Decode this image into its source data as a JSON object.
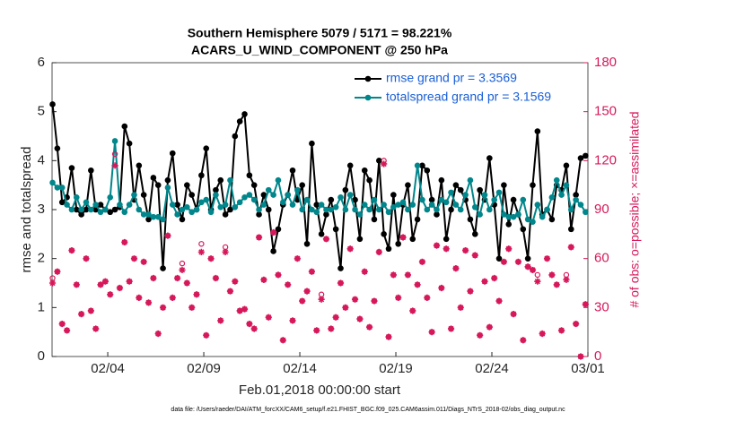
{
  "chart_data": {
    "type": "line",
    "title": "Southern Hemisphere 5079 / 5171 = 98.221%",
    "subtitle": "ACARS_U_WIND_COMPONENT @ 250 hPa",
    "x_label": "Feb.01,2018 00:00:00 start",
    "y_label": "rmse and totalspread",
    "y2_label": "# of obs: o=possible; ×=assimilated",
    "footnote": "data file: /Users/raeder/DAI/ATM_forcXX/CAM6_setup/f.e21.FHIST_BGC.f09_025.CAM6assim.011/Diags_NTrS_2018-02/obs_diag_output.nc",
    "xlim": [
      0.1,
      28
    ],
    "xticks": [
      {
        "value": 3,
        "label": "02/04"
      },
      {
        "value": 8,
        "label": "02/09"
      },
      {
        "value": 13,
        "label": "02/14"
      },
      {
        "value": 18,
        "label": "02/19"
      },
      {
        "value": 23,
        "label": "02/24"
      },
      {
        "value": 28,
        "label": "03/01"
      }
    ],
    "ylim": [
      0,
      6
    ],
    "yticks": [
      0,
      1,
      2,
      3,
      4,
      5,
      6
    ],
    "y2lim": [
      0,
      180
    ],
    "y2ticks": [
      0,
      30,
      60,
      90,
      120,
      150,
      180
    ],
    "grid": false,
    "legend": "upper right",
    "x": [
      0.125,
      0.375,
      0.625,
      0.875,
      1.125,
      1.375,
      1.625,
      1.875,
      2.125,
      2.375,
      2.625,
      2.875,
      3.125,
      3.375,
      3.625,
      3.875,
      4.125,
      4.375,
      4.625,
      4.875,
      5.125,
      5.375,
      5.625,
      5.875,
      6.125,
      6.375,
      6.625,
      6.875,
      7.125,
      7.375,
      7.625,
      7.875,
      8.125,
      8.375,
      8.625,
      8.875,
      9.125,
      9.375,
      9.625,
      9.875,
      10.125,
      10.375,
      10.625,
      10.875,
      11.125,
      11.375,
      11.625,
      11.875,
      12.125,
      12.375,
      12.625,
      12.875,
      13.125,
      13.375,
      13.625,
      13.875,
      14.125,
      14.375,
      14.625,
      14.875,
      15.125,
      15.375,
      15.625,
      15.875,
      16.125,
      16.375,
      16.625,
      16.875,
      17.125,
      17.375,
      17.625,
      17.875,
      18.125,
      18.375,
      18.625,
      18.875,
      19.125,
      19.375,
      19.625,
      19.875,
      20.125,
      20.375,
      20.625,
      20.875,
      21.125,
      21.375,
      21.625,
      21.875,
      22.125,
      22.375,
      22.625,
      22.875,
      23.125,
      23.375,
      23.625,
      23.875,
      24.125,
      24.375,
      24.625,
      24.875,
      25.125,
      25.375,
      25.625,
      25.875,
      26.125,
      26.375,
      26.625,
      26.875,
      27.125,
      27.375,
      27.625,
      27.875
    ],
    "series": [
      {
        "name": "rmse grand pr = 3.3569",
        "color": "#000000",
        "marker": "dot",
        "values": [
          5.15,
          4.25,
          3.15,
          3.25,
          3.85,
          3.0,
          2.9,
          3.0,
          3.8,
          3.0,
          3.1,
          3.0,
          2.95,
          3.0,
          3.05,
          4.7,
          4.35,
          3.2,
          3.9,
          3.3,
          2.8,
          3.65,
          3.5,
          1.8,
          3.6,
          4.15,
          3.1,
          2.8,
          3.5,
          3.3,
          3.0,
          3.7,
          4.25,
          3.0,
          3.4,
          3.6,
          2.9,
          3.0,
          4.5,
          4.8,
          4.95,
          3.7,
          3.5,
          2.9,
          3.3,
          3.0,
          2.15,
          2.6,
          3.1,
          3.3,
          3.8,
          3.2,
          3.5,
          2.3,
          4.35,
          3.1,
          2.5,
          2.9,
          3.2,
          2.6,
          1.8,
          3.4,
          3.9,
          3.2,
          2.4,
          3.8,
          3.6,
          2.8,
          4.0,
          2.5,
          2.2,
          3.3,
          2.3,
          3.1,
          3.5,
          2.4,
          2.8,
          3.9,
          3.8,
          3.2,
          2.9,
          3.6,
          2.4,
          3.0,
          3.5,
          3.4,
          3.2,
          2.8,
          2.5,
          3.4,
          3.2,
          4.05,
          3.1,
          2.0,
          3.5,
          2.7,
          3.2,
          2.9,
          2.6,
          2.0,
          3.5,
          4.6,
          2.9,
          3.0,
          2.8,
          3.5,
          3.4,
          3.9,
          2.6,
          3.3,
          4.05,
          4.1
        ]
      },
      {
        "name": "totalspread grand pr = 3.1569",
        "color": "#00868b",
        "marker": "dot",
        "values": [
          3.55,
          3.45,
          3.45,
          3.1,
          3.0,
          3.25,
          3.0,
          3.15,
          3.0,
          3.1,
          2.95,
          3.0,
          3.25,
          4.4,
          3.1,
          2.95,
          3.1,
          3.3,
          3.0,
          2.9,
          2.9,
          2.85,
          2.85,
          2.8,
          3.45,
          3.1,
          2.9,
          3.0,
          3.05,
          2.95,
          3.0,
          3.15,
          3.2,
          2.95,
          3.3,
          3.05,
          3.1,
          3.6,
          3.05,
          3.15,
          3.25,
          3.3,
          3.2,
          3.0,
          3.1,
          3.4,
          3.3,
          3.6,
          3.15,
          3.3,
          3.1,
          3.4,
          3.0,
          3.2,
          3.0,
          2.95,
          3.1,
          3.0,
          3.0,
          3.05,
          3.25,
          3.0,
          3.3,
          3.0,
          2.9,
          3.1,
          3.0,
          3.2,
          3.0,
          3.1,
          2.95,
          3.05,
          3.1,
          3.15,
          3.0,
          3.1,
          3.9,
          3.2,
          3.0,
          3.1,
          3.0,
          3.2,
          3.15,
          3.35,
          3.1,
          3.0,
          3.3,
          3.6,
          3.05,
          2.9,
          3.3,
          3.0,
          3.2,
          3.35,
          2.9,
          2.85,
          2.85,
          2.9,
          3.2,
          2.8,
          2.75,
          3.1,
          2.85,
          3.0,
          3.25,
          3.6,
          3.3,
          3.5,
          3.0,
          3.2,
          3.1,
          2.95
        ]
      },
      {
        "name": "obs possible",
        "color": "#d6185b",
        "marker": "o",
        "axis": "y2",
        "values": [
          48,
          52,
          20,
          16,
          65,
          44,
          26,
          60,
          28,
          17,
          44,
          46,
          38,
          124,
          42,
          70,
          46,
          60,
          36,
          58,
          33,
          48,
          14,
          30,
          74,
          36,
          48,
          57,
          45,
          30,
          38,
          69,
          13,
          60,
          48,
          22,
          67,
          40,
          46,
          28,
          29,
          20,
          17,
          73,
          47,
          24,
          76,
          50,
          10,
          44,
          22,
          60,
          34,
          40,
          52,
          16,
          38,
          72,
          17,
          24,
          45,
          30,
          66,
          35,
          23,
          52,
          18,
          34,
          64,
          120,
          12,
          50,
          36,
          73,
          50,
          28,
          44,
          58,
          36,
          15,
          68,
          42,
          66,
          17,
          54,
          30,
          65,
          40,
          62,
          13,
          46,
          18,
          48,
          34,
          58,
          66,
          26,
          58,
          10,
          55,
          53,
          50,
          14,
          60,
          50,
          44,
          16,
          50,
          67,
          20,
          0,
          32
        ]
      },
      {
        "name": "obs assimilated",
        "color": "#d6185b",
        "marker": "*",
        "axis": "y2",
        "values": [
          45,
          52,
          20,
          16,
          65,
          44,
          26,
          60,
          28,
          17,
          44,
          46,
          38,
          117,
          42,
          70,
          46,
          60,
          36,
          58,
          33,
          48,
          14,
          30,
          74,
          36,
          48,
          53,
          45,
          30,
          38,
          64,
          13,
          60,
          48,
          22,
          64,
          40,
          46,
          28,
          29,
          20,
          17,
          73,
          47,
          24,
          76,
          50,
          10,
          44,
          22,
          60,
          34,
          40,
          52,
          16,
          35,
          72,
          17,
          24,
          45,
          30,
          66,
          35,
          23,
          52,
          18,
          34,
          64,
          118,
          12,
          50,
          36,
          73,
          50,
          28,
          44,
          58,
          36,
          15,
          68,
          42,
          66,
          17,
          54,
          30,
          65,
          40,
          62,
          13,
          46,
          18,
          48,
          34,
          58,
          66,
          26,
          58,
          10,
          55,
          53,
          46,
          14,
          60,
          50,
          44,
          16,
          47,
          67,
          20,
          0,
          32
        ]
      }
    ]
  }
}
